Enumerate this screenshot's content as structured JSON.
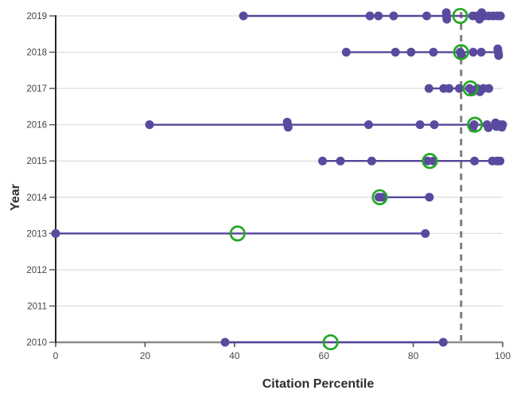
{
  "chart_data": {
    "type": "scatter",
    "variant": "dot-strip-lollipop-by-year",
    "title": "",
    "xlabel": "Citation Percentile",
    "ylabel": "Year",
    "xlim": [
      0,
      100
    ],
    "x_ticks": [
      0,
      20,
      40,
      60,
      80,
      100
    ],
    "y_categories": [
      "2019",
      "2018",
      "2017",
      "2016",
      "2015",
      "2014",
      "2013",
      "2012",
      "2011",
      "2010"
    ],
    "grid": "horizontal",
    "legend": "none",
    "reference_line_x": 90.7,
    "series": [
      {
        "year": "2019",
        "points": [
          [
            42,
            0
          ],
          [
            70.3,
            0
          ],
          [
            72.2,
            0
          ],
          [
            75.6,
            0
          ],
          [
            83,
            0
          ],
          [
            87.4,
            -0.9
          ],
          [
            87.4,
            0
          ],
          [
            87.5,
            0.9
          ],
          [
            93.3,
            0
          ],
          [
            94.3,
            0
          ],
          [
            94.8,
            0.9
          ],
          [
            95.3,
            -0.9
          ],
          [
            95.9,
            0
          ],
          [
            96.9,
            0
          ],
          [
            97.9,
            0
          ],
          [
            98.8,
            0
          ],
          [
            99.5,
            0
          ]
        ],
        "highlight": 90.5,
        "range": [
          42,
          99.6
        ]
      },
      {
        "year": "2018",
        "points": [
          [
            65,
            0
          ],
          [
            76,
            0
          ],
          [
            79.5,
            0
          ],
          [
            84.5,
            0
          ],
          [
            90.5,
            0
          ],
          [
            90.8,
            0.8
          ],
          [
            93.4,
            0
          ],
          [
            95.2,
            0
          ],
          [
            98.9,
            -0.9
          ],
          [
            99,
            0
          ],
          [
            99.1,
            0.9
          ]
        ],
        "highlight": 90.7,
        "range": [
          65,
          99.2
        ]
      },
      {
        "year": "2017",
        "points": [
          [
            83.5,
            0
          ],
          [
            86.8,
            0
          ],
          [
            88,
            0
          ],
          [
            90.3,
            0
          ],
          [
            92.6,
            0
          ],
          [
            93.3,
            0.9
          ],
          [
            94.3,
            0
          ],
          [
            94.9,
            0.9
          ],
          [
            95.7,
            0
          ],
          [
            96.9,
            0
          ]
        ],
        "highlight": 92.8,
        "range": [
          83.5,
          96.9
        ]
      },
      {
        "year": "2016",
        "points": [
          [
            21,
            0
          ],
          [
            51.8,
            -0.7
          ],
          [
            51.9,
            0
          ],
          [
            52,
            0.7
          ],
          [
            70,
            0
          ],
          [
            81.5,
            0
          ],
          [
            84.7,
            0
          ],
          [
            93.3,
            0.9
          ],
          [
            93.6,
            0
          ],
          [
            96.5,
            0
          ],
          [
            96.8,
            0.8
          ],
          [
            98.4,
            -0.5
          ],
          [
            98.6,
            0.5
          ],
          [
            99.3,
            0
          ],
          [
            99.8,
            0.7
          ],
          [
            100,
            0
          ]
        ],
        "highlight": 93.8,
        "range": [
          21,
          100
        ]
      },
      {
        "year": "2015",
        "points": [
          [
            59.7,
            0
          ],
          [
            63.7,
            0
          ],
          [
            70.7,
            0
          ],
          [
            83.2,
            0
          ],
          [
            84.5,
            0
          ],
          [
            93.7,
            0
          ],
          [
            97.7,
            0
          ],
          [
            98.7,
            0
          ],
          [
            99.4,
            0
          ]
        ],
        "highlight": 83.7,
        "range": [
          59.7,
          99.4
        ]
      },
      {
        "year": "2014",
        "points": [
          [
            72.3,
            0
          ],
          [
            73.1,
            0
          ],
          [
            83.6,
            0
          ]
        ],
        "highlight": 72.5,
        "range": [
          72.3,
          83.6
        ]
      },
      {
        "year": "2013",
        "points": [
          [
            0,
            0
          ],
          [
            82.7,
            0
          ]
        ],
        "highlight": 40.7,
        "range": [
          0,
          82.7
        ]
      },
      {
        "year": "2012",
        "points": [],
        "highlight": null,
        "range": null
      },
      {
        "year": "2011",
        "points": [],
        "highlight": null,
        "range": null
      },
      {
        "year": "2010",
        "points": [
          [
            37.9,
            0
          ],
          [
            86.7,
            0
          ]
        ],
        "highlight": 61.5,
        "range": [
          37.9,
          86.7
        ]
      }
    ],
    "colors": {
      "dot": "#5a4a9e",
      "range_line": "#564699",
      "highlight_ring": "#23a823",
      "reference_line": "#7e7e7e",
      "grid_line": "#dddddd",
      "x_axis": "#8c8c8c",
      "y_axis": "#262626",
      "tick": "#555555",
      "text": "#4a4a4a"
    }
  }
}
